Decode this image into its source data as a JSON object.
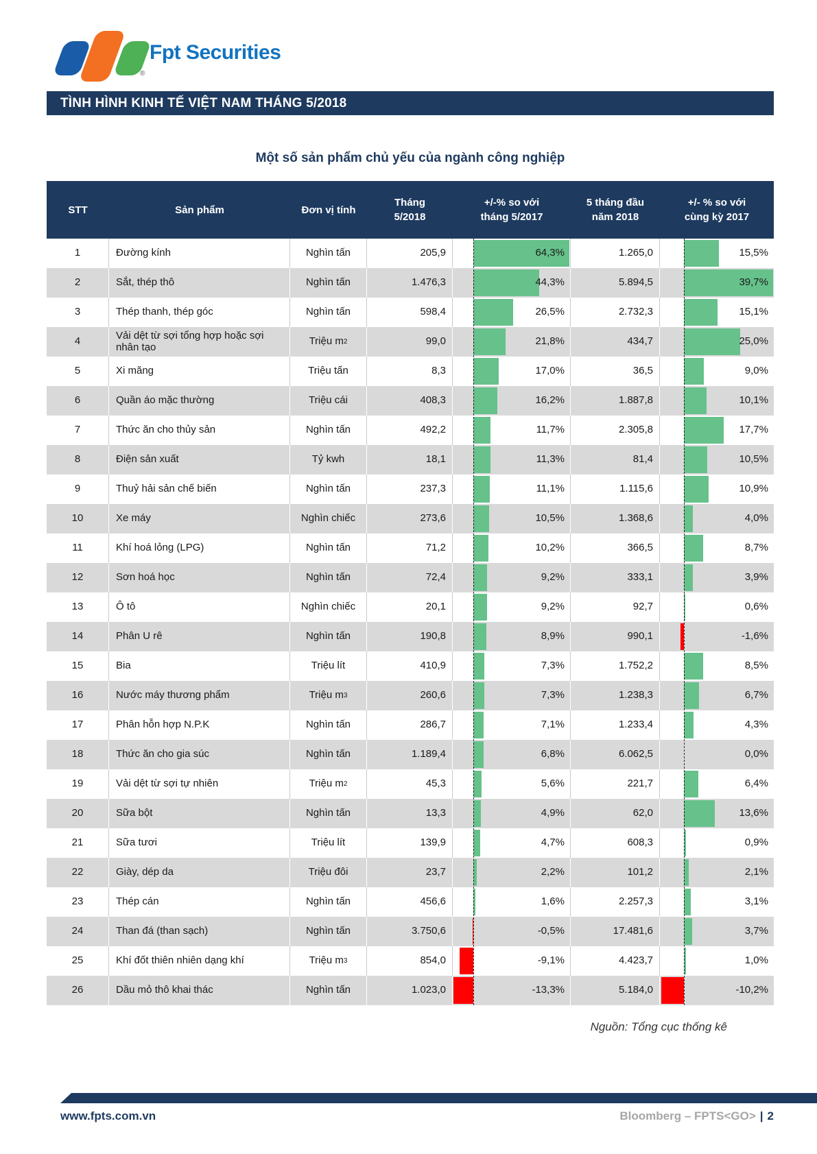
{
  "logo": {
    "brand": "Fpt Securities",
    "registered": "®"
  },
  "banner": {
    "title": "TÌNH HÌNH KINH TẾ VIỆT NAM THÁNG 5/2018"
  },
  "page_title": "Một số sản phẩm chủ yếu của ngành công nghiệp",
  "colors": {
    "navy": "#1E3A5F",
    "row_alt": "#D9D9D9",
    "bar_green": "#66C18B",
    "bar_red": "#FF0000",
    "logo_blue": "#1A5CA8",
    "logo_orange": "#F36F21",
    "logo_green": "#4FB155",
    "brand_blue": "#1373BF",
    "footer_gray": "#A6A6A6"
  },
  "table": {
    "columns": {
      "stt": "STT",
      "product": "Sản phẩm",
      "unit": "Đơn vị tính",
      "month": {
        "line1": "Tháng",
        "line2": "5/2018"
      },
      "mom": {
        "line1": "+/-% so với",
        "line2": "tháng 5/2017"
      },
      "ytd": {
        "line1": "5 tháng đầu",
        "line2": "năm 2018"
      },
      "yoy": {
        "line1": "+/- % so với",
        "line2": "cùng kỳ 2017"
      }
    },
    "bar_scale": {
      "mom_max": 64.3,
      "yoy_max": 39.7
    },
    "rows": [
      {
        "stt": "1",
        "product": "Đường kính",
        "unit": "Nghìn tấn",
        "unit_sup": "",
        "month": "205,9",
        "mom": "64,3%",
        "mom_val": 64.3,
        "ytd": "1.265,0",
        "yoy": "15,5%",
        "yoy_val": 15.5
      },
      {
        "stt": "2",
        "product": "Sắt, thép thô",
        "unit": "Nghìn tấn",
        "unit_sup": "",
        "month": "1.476,3",
        "mom": "44,3%",
        "mom_val": 44.3,
        "ytd": "5.894,5",
        "yoy": "39,7%",
        "yoy_val": 39.7
      },
      {
        "stt": "3",
        "product": "Thép thanh, thép góc",
        "unit": "Nghìn tấn",
        "unit_sup": "",
        "month": "598,4",
        "mom": "26,5%",
        "mom_val": 26.5,
        "ytd": "2.732,3",
        "yoy": "15,1%",
        "yoy_val": 15.1
      },
      {
        "stt": "4",
        "product": "Vải dệt từ sợi tổng hợp hoặc sợi nhân tạo",
        "unit": "Triệu m",
        "unit_sup": "2",
        "month": "99,0",
        "mom": "21,8%",
        "mom_val": 21.8,
        "ytd": "434,7",
        "yoy": "25,0%",
        "yoy_val": 25.0
      },
      {
        "stt": "5",
        "product": "Xi măng",
        "unit": "Triệu tấn",
        "unit_sup": "",
        "month": "8,3",
        "mom": "17,0%",
        "mom_val": 17.0,
        "ytd": "36,5",
        "yoy": "9,0%",
        "yoy_val": 9.0
      },
      {
        "stt": "6",
        "product": "Quần áo mặc thường",
        "unit": "Triệu cái",
        "unit_sup": "",
        "month": "408,3",
        "mom": "16,2%",
        "mom_val": 16.2,
        "ytd": "1.887,8",
        "yoy": "10,1%",
        "yoy_val": 10.1
      },
      {
        "stt": "7",
        "product": "Thức ăn cho thủy sản",
        "unit": "Nghìn tấn",
        "unit_sup": "",
        "month": "492,2",
        "mom": "11,7%",
        "mom_val": 11.7,
        "ytd": "2.305,8",
        "yoy": "17,7%",
        "yoy_val": 17.7
      },
      {
        "stt": "8",
        "product": "Điện sản xuất",
        "unit": "Tỷ kwh",
        "unit_sup": "",
        "month": "18,1",
        "mom": "11,3%",
        "mom_val": 11.3,
        "ytd": "81,4",
        "yoy": "10,5%",
        "yoy_val": 10.5
      },
      {
        "stt": "9",
        "product": "Thuỷ hải sản chế biến",
        "unit": "Nghìn tấn",
        "unit_sup": "",
        "month": "237,3",
        "mom": "11,1%",
        "mom_val": 11.1,
        "ytd": "1.115,6",
        "yoy": "10,9%",
        "yoy_val": 10.9
      },
      {
        "stt": "10",
        "product": "Xe máy",
        "unit": "Nghìn chiếc",
        "unit_sup": "",
        "month": "273,6",
        "mom": "10,5%",
        "mom_val": 10.5,
        "ytd": "1.368,6",
        "yoy": "4,0%",
        "yoy_val": 4.0
      },
      {
        "stt": "11",
        "product": "Khí hoá lỏng (LPG)",
        "unit": "Nghìn tấn",
        "unit_sup": "",
        "month": "71,2",
        "mom": "10,2%",
        "mom_val": 10.2,
        "ytd": "366,5",
        "yoy": "8,7%",
        "yoy_val": 8.7
      },
      {
        "stt": "12",
        "product": "Sơn hoá học",
        "unit": "Nghìn tấn",
        "unit_sup": "",
        "month": "72,4",
        "mom": "9,2%",
        "mom_val": 9.2,
        "ytd": "333,1",
        "yoy": "3,9%",
        "yoy_val": 3.9
      },
      {
        "stt": "13",
        "product": "Ô tô",
        "unit": "Nghìn chiếc",
        "unit_sup": "",
        "month": "20,1",
        "mom": "9,2%",
        "mom_val": 9.2,
        "ytd": "92,7",
        "yoy": "0,6%",
        "yoy_val": 0.6
      },
      {
        "stt": "14",
        "product": "Phân U rê",
        "unit": "Nghìn tấn",
        "unit_sup": "",
        "month": "190,8",
        "mom": "8,9%",
        "mom_val": 8.9,
        "ytd": "990,1",
        "yoy": "-1,6%",
        "yoy_val": -1.6
      },
      {
        "stt": "15",
        "product": "Bia",
        "unit": "Triệu lít",
        "unit_sup": "",
        "month": "410,9",
        "mom": "7,3%",
        "mom_val": 7.3,
        "ytd": "1.752,2",
        "yoy": "8,5%",
        "yoy_val": 8.5
      },
      {
        "stt": "16",
        "product": "Nước máy thương phẩm",
        "unit": "Triệu m",
        "unit_sup": "3",
        "month": "260,6",
        "mom": "7,3%",
        "mom_val": 7.3,
        "ytd": "1.238,3",
        "yoy": "6,7%",
        "yoy_val": 6.7
      },
      {
        "stt": "17",
        "product": "Phân hỗn hợp N.P.K",
        "unit": "Nghìn tấn",
        "unit_sup": "",
        "month": "286,7",
        "mom": "7,1%",
        "mom_val": 7.1,
        "ytd": "1.233,4",
        "yoy": "4,3%",
        "yoy_val": 4.3
      },
      {
        "stt": "18",
        "product": "Thức ăn cho gia súc",
        "unit": "Nghìn tấn",
        "unit_sup": "",
        "month": "1.189,4",
        "mom": "6,8%",
        "mom_val": 6.8,
        "ytd": "6.062,5",
        "yoy": "0,0%",
        "yoy_val": 0.0
      },
      {
        "stt": "19",
        "product": "Vải dệt từ sợi tự nhiên",
        "unit": "Triệu m",
        "unit_sup": "2",
        "month": "45,3",
        "mom": "5,6%",
        "mom_val": 5.6,
        "ytd": "221,7",
        "yoy": "6,4%",
        "yoy_val": 6.4
      },
      {
        "stt": "20",
        "product": "Sữa bột",
        "unit": "Nghìn tấn",
        "unit_sup": "",
        "month": "13,3",
        "mom": "4,9%",
        "mom_val": 4.9,
        "ytd": "62,0",
        "yoy": "13,6%",
        "yoy_val": 13.6
      },
      {
        "stt": "21",
        "product": "Sữa tươi",
        "unit": "Triệu lít",
        "unit_sup": "",
        "month": "139,9",
        "mom": "4,7%",
        "mom_val": 4.7,
        "ytd": "608,3",
        "yoy": "0,9%",
        "yoy_val": 0.9
      },
      {
        "stt": "22",
        "product": "Giày, dép da",
        "unit": "Triệu đôi",
        "unit_sup": "",
        "month": "23,7",
        "mom": "2,2%",
        "mom_val": 2.2,
        "ytd": "101,2",
        "yoy": "2,1%",
        "yoy_val": 2.1
      },
      {
        "stt": "23",
        "product": "Thép cán",
        "unit": "Nghìn tấn",
        "unit_sup": "",
        "month": "456,6",
        "mom": "1,6%",
        "mom_val": 1.6,
        "ytd": "2.257,3",
        "yoy": "3,1%",
        "yoy_val": 3.1
      },
      {
        "stt": "24",
        "product": "Than đá (than sạch)",
        "unit": "Nghìn tấn",
        "unit_sup": "",
        "month": "3.750,6",
        "mom": "-0,5%",
        "mom_val": -0.5,
        "ytd": "17.481,6",
        "yoy": "3,7%",
        "yoy_val": 3.7
      },
      {
        "stt": "25",
        "product": "Khí đốt thiên nhiên dạng khí",
        "unit": "Triệu m",
        "unit_sup": "3",
        "month": "854,0",
        "mom": "-9,1%",
        "mom_val": -9.1,
        "ytd": "4.423,7",
        "yoy": "1,0%",
        "yoy_val": 1.0
      },
      {
        "stt": "26",
        "product": "Dầu mỏ thô khai thác",
        "unit": "Nghìn tấn",
        "unit_sup": "",
        "month": "1.023,0",
        "mom": "-13,3%",
        "mom_val": -13.3,
        "ytd": "5.184,0",
        "yoy": "-10,2%",
        "yoy_val": -10.2
      }
    ]
  },
  "source": "Nguồn: Tổng cục thống kê",
  "footer": {
    "website": "www.fpts.com.vn",
    "bloomberg": "Bloomberg – FPTS<GO>",
    "separator": "|",
    "page_number": "2"
  }
}
